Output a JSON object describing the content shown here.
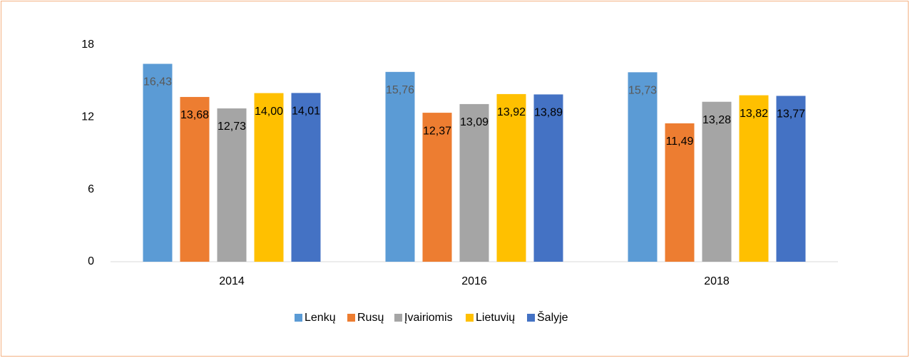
{
  "chart_data": {
    "type": "bar",
    "categories": [
      "2014",
      "2016",
      "2018"
    ],
    "series": [
      {
        "name": "Lenkų",
        "color": "#5b9bd5",
        "values": [
          16.43,
          15.76,
          15.73
        ],
        "value_labels": [
          "16,43",
          "15,76",
          "15,73"
        ]
      },
      {
        "name": "Rusų",
        "color": "#ed7d31",
        "values": [
          13.68,
          12.37,
          11.49
        ],
        "value_labels": [
          "13,68",
          "12,37",
          "11,49"
        ]
      },
      {
        "name": "Įvairiomis",
        "color": "#a5a5a5",
        "values": [
          12.73,
          13.09,
          13.28
        ],
        "value_labels": [
          "12,73",
          "13,09",
          "13,28"
        ]
      },
      {
        "name": "Lietuvių",
        "color": "#ffc000",
        "values": [
          14.0,
          13.92,
          13.82
        ],
        "value_labels": [
          "14,00",
          "13,92",
          "13,82"
        ]
      },
      {
        "name": "Šalyje",
        "color": "#4472c4",
        "values": [
          14.01,
          13.89,
          13.77
        ],
        "value_labels": [
          "14,01",
          "13,89",
          "13,77"
        ]
      }
    ],
    "ylim": [
      0,
      18
    ],
    "yticks": [
      0,
      6,
      12,
      18
    ],
    "grid": false,
    "legend": "bottom"
  }
}
